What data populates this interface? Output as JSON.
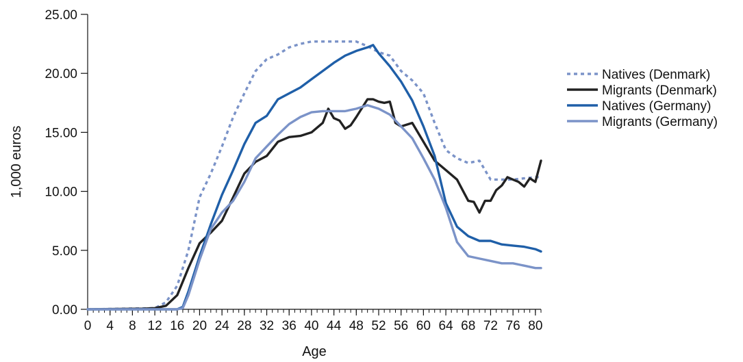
{
  "chart_data": {
    "type": "line",
    "xlabel": "Age",
    "ylabel": "1,000 euros",
    "xlim": [
      0,
      81
    ],
    "ylim": [
      0,
      25
    ],
    "x_ticks": [
      0,
      4,
      8,
      12,
      16,
      20,
      24,
      28,
      32,
      36,
      40,
      44,
      48,
      52,
      56,
      60,
      64,
      68,
      72,
      76,
      80
    ],
    "y_ticks": [
      0,
      5,
      10,
      15,
      20,
      25
    ],
    "y_tick_labels": [
      "0.00",
      "5.00",
      "10.00",
      "15.00",
      "20.00",
      "25.00"
    ],
    "grid": false,
    "legend_position": "right",
    "series": [
      {
        "name": "Natives (Denmark)",
        "color": "#7b93c8",
        "dash": "dotted",
        "points": [
          [
            0,
            0
          ],
          [
            12,
            0.1
          ],
          [
            14,
            0.6
          ],
          [
            16,
            2.0
          ],
          [
            18,
            5.0
          ],
          [
            20,
            9.5
          ],
          [
            22,
            11.5
          ],
          [
            24,
            13.8
          ],
          [
            26,
            16.3
          ],
          [
            28,
            18.3
          ],
          [
            30,
            20.2
          ],
          [
            32,
            21.2
          ],
          [
            34,
            21.6
          ],
          [
            36,
            22.2
          ],
          [
            38,
            22.5
          ],
          [
            40,
            22.7
          ],
          [
            44,
            22.7
          ],
          [
            48,
            22.7
          ],
          [
            50,
            22.3
          ],
          [
            52,
            21.8
          ],
          [
            54,
            21.5
          ],
          [
            56,
            20.2
          ],
          [
            58,
            19.4
          ],
          [
            60,
            18.3
          ],
          [
            62,
            15.8
          ],
          [
            64,
            13.5
          ],
          [
            66,
            12.8
          ],
          [
            68,
            12.4
          ],
          [
            70,
            12.6
          ],
          [
            72,
            11.0
          ],
          [
            74,
            11.0
          ],
          [
            76,
            11.0
          ],
          [
            78,
            11.1
          ],
          [
            80,
            11.2
          ],
          [
            81,
            11.2
          ]
        ]
      },
      {
        "name": "Migrants (Denmark)",
        "color": "#222222",
        "dash": "solid",
        "points": [
          [
            0,
            0
          ],
          [
            10,
            0.05
          ],
          [
            12,
            0.1
          ],
          [
            14,
            0.3
          ],
          [
            16,
            1.2
          ],
          [
            18,
            3.5
          ],
          [
            20,
            5.6
          ],
          [
            22,
            6.5
          ],
          [
            24,
            7.5
          ],
          [
            26,
            9.5
          ],
          [
            28,
            11.5
          ],
          [
            30,
            12.5
          ],
          [
            32,
            13.0
          ],
          [
            34,
            14.2
          ],
          [
            36,
            14.6
          ],
          [
            38,
            14.7
          ],
          [
            40,
            15.0
          ],
          [
            42,
            15.8
          ],
          [
            43,
            17.0
          ],
          [
            44,
            16.2
          ],
          [
            45,
            16.0
          ],
          [
            46,
            15.3
          ],
          [
            47,
            15.6
          ],
          [
            48,
            16.3
          ],
          [
            50,
            17.8
          ],
          [
            51,
            17.8
          ],
          [
            52,
            17.6
          ],
          [
            53,
            17.5
          ],
          [
            54,
            17.6
          ],
          [
            55,
            15.8
          ],
          [
            56,
            15.5
          ],
          [
            58,
            15.8
          ],
          [
            60,
            14.2
          ],
          [
            62,
            12.6
          ],
          [
            64,
            11.8
          ],
          [
            66,
            11.0
          ],
          [
            68,
            9.2
          ],
          [
            69,
            9.1
          ],
          [
            70,
            8.2
          ],
          [
            71,
            9.2
          ],
          [
            72,
            9.2
          ],
          [
            73,
            10.1
          ],
          [
            74,
            10.5
          ],
          [
            75,
            11.2
          ],
          [
            76,
            11.0
          ],
          [
            77,
            10.8
          ],
          [
            78,
            10.4
          ],
          [
            79,
            11.1
          ],
          [
            80,
            10.8
          ],
          [
            81,
            12.6
          ]
        ]
      },
      {
        "name": "Natives (Germany)",
        "color": "#1f5fa8",
        "dash": "solid",
        "points": [
          [
            0,
            0
          ],
          [
            16,
            0.0
          ],
          [
            17,
            0.2
          ],
          [
            18,
            1.5
          ],
          [
            20,
            4.5
          ],
          [
            22,
            7.2
          ],
          [
            24,
            9.7
          ],
          [
            26,
            11.8
          ],
          [
            28,
            14.0
          ],
          [
            30,
            15.8
          ],
          [
            32,
            16.4
          ],
          [
            34,
            17.8
          ],
          [
            36,
            18.3
          ],
          [
            38,
            18.8
          ],
          [
            40,
            19.5
          ],
          [
            42,
            20.2
          ],
          [
            44,
            20.9
          ],
          [
            46,
            21.5
          ],
          [
            48,
            21.9
          ],
          [
            50,
            22.2
          ],
          [
            51,
            22.4
          ],
          [
            52,
            21.7
          ],
          [
            54,
            20.6
          ],
          [
            56,
            19.3
          ],
          [
            58,
            17.7
          ],
          [
            60,
            15.5
          ],
          [
            62,
            13.0
          ],
          [
            64,
            9.0
          ],
          [
            66,
            7.0
          ],
          [
            68,
            6.2
          ],
          [
            70,
            5.8
          ],
          [
            72,
            5.8
          ],
          [
            74,
            5.5
          ],
          [
            76,
            5.4
          ],
          [
            78,
            5.3
          ],
          [
            80,
            5.1
          ],
          [
            81,
            4.9
          ]
        ]
      },
      {
        "name": "Migrants (Germany)",
        "color": "#7b93c8",
        "dash": "solid",
        "points": [
          [
            0,
            0
          ],
          [
            16,
            0.0
          ],
          [
            17,
            0.1
          ],
          [
            18,
            1.2
          ],
          [
            20,
            4.2
          ],
          [
            22,
            6.8
          ],
          [
            24,
            8.2
          ],
          [
            26,
            9.2
          ],
          [
            28,
            10.8
          ],
          [
            30,
            12.8
          ],
          [
            32,
            13.8
          ],
          [
            34,
            14.8
          ],
          [
            36,
            15.7
          ],
          [
            38,
            16.3
          ],
          [
            40,
            16.7
          ],
          [
            42,
            16.8
          ],
          [
            44,
            16.8
          ],
          [
            46,
            16.8
          ],
          [
            48,
            17.0
          ],
          [
            50,
            17.3
          ],
          [
            52,
            17.0
          ],
          [
            54,
            16.5
          ],
          [
            56,
            15.5
          ],
          [
            58,
            14.5
          ],
          [
            60,
            12.8
          ],
          [
            62,
            11.0
          ],
          [
            64,
            8.6
          ],
          [
            66,
            5.7
          ],
          [
            68,
            4.5
          ],
          [
            70,
            4.3
          ],
          [
            72,
            4.1
          ],
          [
            74,
            3.9
          ],
          [
            76,
            3.9
          ],
          [
            78,
            3.7
          ],
          [
            80,
            3.5
          ],
          [
            81,
            3.5
          ]
        ]
      }
    ]
  }
}
